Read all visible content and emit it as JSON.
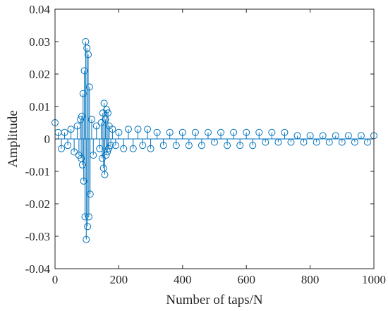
{
  "chart_data": {
    "type": "stem",
    "xlabel": "Number of taps/N",
    "ylabel": "Amplitude",
    "xlim": [
      0,
      1000
    ],
    "ylim": [
      -0.04,
      0.04
    ],
    "xticks": [
      0,
      200,
      400,
      600,
      800,
      1000
    ],
    "xtick_labels": [
      "0",
      "200",
      "400",
      "600",
      "800",
      "1000"
    ],
    "yticks": [
      -0.04,
      -0.03,
      -0.02,
      -0.01,
      0,
      0.01,
      0.02,
      0.03,
      0.04
    ],
    "ytick_labels": [
      "-0.04",
      "-0.03",
      "-0.02",
      "-0.01",
      "0",
      "0.01",
      "0.02",
      "0.03",
      "0.04"
    ],
    "grid": false,
    "colors": {
      "series": "#0072BD",
      "axes": "#262626"
    },
    "series": [
      {
        "x": [
          0,
          10,
          20,
          30,
          40,
          50,
          60,
          70,
          75,
          80,
          82,
          84,
          86,
          88,
          90,
          92,
          94,
          96,
          98,
          100,
          102,
          104,
          106,
          108,
          110,
          115,
          120,
          130,
          140,
          145,
          148,
          150,
          152,
          154,
          156,
          158,
          160,
          162,
          164,
          166,
          168,
          170,
          175,
          180,
          190,
          200,
          215,
          230,
          245,
          260,
          275,
          290,
          300,
          320,
          340,
          360,
          380,
          400,
          420,
          440,
          460,
          480,
          500,
          520,
          540,
          560,
          580,
          600,
          620,
          640,
          660,
          680,
          700,
          720,
          740,
          760,
          780,
          800,
          820,
          840,
          860,
          880,
          900,
          920,
          940,
          960,
          980,
          1000
        ],
        "y": [
          0.005,
          0.002,
          -0.003,
          0.002,
          -0.002,
          0.003,
          -0.004,
          0.004,
          -0.005,
          0.006,
          -0.006,
          0.007,
          -0.008,
          0.014,
          -0.013,
          0.021,
          -0.024,
          0.03,
          -0.031,
          0.028,
          -0.027,
          0.026,
          -0.024,
          0.016,
          -0.017,
          0.006,
          -0.005,
          0.004,
          -0.003,
          0.005,
          -0.006,
          0.008,
          -0.009,
          0.011,
          -0.011,
          0.006,
          -0.005,
          0.009,
          -0.004,
          0.008,
          -0.003,
          0.004,
          -0.002,
          0.003,
          -0.002,
          0.002,
          -0.003,
          0.003,
          -0.003,
          0.003,
          -0.002,
          0.003,
          -0.003,
          0.002,
          -0.002,
          0.002,
          -0.002,
          0.002,
          -0.002,
          0.002,
          -0.002,
          0.002,
          -0.001,
          0.002,
          -0.002,
          0.002,
          -0.002,
          0.002,
          -0.002,
          0.002,
          -0.001,
          0.002,
          -0.001,
          0.002,
          -0.001,
          0.001,
          -0.001,
          0.001,
          -0.001,
          0.001,
          -0.001,
          0.001,
          -0.001,
          0.001,
          -0.001,
          0.001,
          -0.001,
          0.001
        ]
      }
    ]
  }
}
